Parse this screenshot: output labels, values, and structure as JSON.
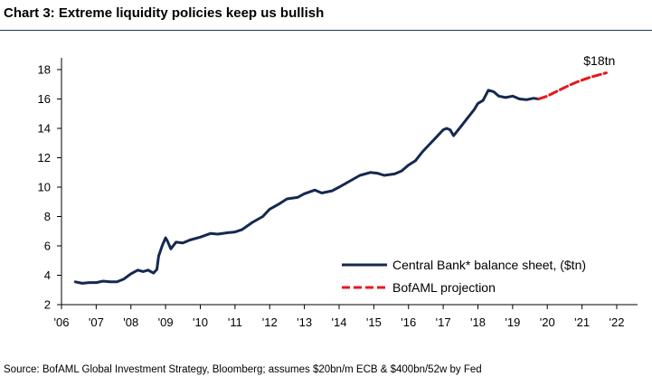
{
  "chart_data": {
    "type": "line",
    "title": "Chart 3: Extreme liquidity policies keep us bullish",
    "xlabel": "",
    "ylabel": "",
    "xlim": [
      2006,
      2022.6
    ],
    "ylim": [
      2,
      18.8
    ],
    "y_ticks": [
      2,
      4,
      6,
      8,
      10,
      12,
      14,
      16,
      18
    ],
    "x_ticks": [
      {
        "value": 2006,
        "label": "'06"
      },
      {
        "value": 2007,
        "label": "'07"
      },
      {
        "value": 2008,
        "label": "'08"
      },
      {
        "value": 2009,
        "label": "'09"
      },
      {
        "value": 2010,
        "label": "'10"
      },
      {
        "value": 2011,
        "label": "'11"
      },
      {
        "value": 2012,
        "label": "'12"
      },
      {
        "value": 2013,
        "label": "'13"
      },
      {
        "value": 2014,
        "label": "'14"
      },
      {
        "value": 2015,
        "label": "'15"
      },
      {
        "value": 2016,
        "label": "'16"
      },
      {
        "value": 2017,
        "label": "'17"
      },
      {
        "value": 2018,
        "label": "'18"
      },
      {
        "value": 2019,
        "label": "'19"
      },
      {
        "value": 2020,
        "label": "'20"
      },
      {
        "value": 2021,
        "label": "'21"
      },
      {
        "value": 2022,
        "label": "'22"
      }
    ],
    "grid": false,
    "legend_position": "bottom-right",
    "series": [
      {
        "name": "Central Bank* balance sheet, ($tn)",
        "color": "#15294f",
        "style": "solid",
        "points": [
          [
            2006.4,
            3.55
          ],
          [
            2006.6,
            3.45
          ],
          [
            2006.8,
            3.5
          ],
          [
            2007.0,
            3.5
          ],
          [
            2007.2,
            3.6
          ],
          [
            2007.4,
            3.55
          ],
          [
            2007.6,
            3.55
          ],
          [
            2007.8,
            3.75
          ],
          [
            2008.0,
            4.1
          ],
          [
            2008.2,
            4.35
          ],
          [
            2008.35,
            4.25
          ],
          [
            2008.5,
            4.35
          ],
          [
            2008.65,
            4.15
          ],
          [
            2008.75,
            4.4
          ],
          [
            2008.8,
            5.3
          ],
          [
            2008.9,
            6.0
          ],
          [
            2009.0,
            6.55
          ],
          [
            2009.05,
            6.35
          ],
          [
            2009.15,
            5.8
          ],
          [
            2009.3,
            6.25
          ],
          [
            2009.5,
            6.2
          ],
          [
            2009.7,
            6.4
          ],
          [
            2010.0,
            6.6
          ],
          [
            2010.3,
            6.85
          ],
          [
            2010.5,
            6.8
          ],
          [
            2010.8,
            6.9
          ],
          [
            2011.0,
            6.95
          ],
          [
            2011.2,
            7.1
          ],
          [
            2011.5,
            7.6
          ],
          [
            2011.8,
            8.0
          ],
          [
            2012.0,
            8.5
          ],
          [
            2012.3,
            8.9
          ],
          [
            2012.5,
            9.2
          ],
          [
            2012.8,
            9.3
          ],
          [
            2013.0,
            9.55
          ],
          [
            2013.3,
            9.8
          ],
          [
            2013.5,
            9.6
          ],
          [
            2013.8,
            9.75
          ],
          [
            2014.0,
            10.0
          ],
          [
            2014.3,
            10.4
          ],
          [
            2014.6,
            10.8
          ],
          [
            2014.9,
            11.0
          ],
          [
            2015.1,
            10.95
          ],
          [
            2015.3,
            10.8
          ],
          [
            2015.6,
            10.9
          ],
          [
            2015.8,
            11.1
          ],
          [
            2016.0,
            11.5
          ],
          [
            2016.2,
            11.8
          ],
          [
            2016.4,
            12.4
          ],
          [
            2016.6,
            12.9
          ],
          [
            2016.8,
            13.4
          ],
          [
            2017.0,
            13.9
          ],
          [
            2017.1,
            14.0
          ],
          [
            2017.2,
            13.9
          ],
          [
            2017.3,
            13.5
          ],
          [
            2017.5,
            14.1
          ],
          [
            2017.7,
            14.7
          ],
          [
            2017.9,
            15.3
          ],
          [
            2018.0,
            15.7
          ],
          [
            2018.15,
            15.9
          ],
          [
            2018.3,
            16.6
          ],
          [
            2018.45,
            16.5
          ],
          [
            2018.6,
            16.2
          ],
          [
            2018.8,
            16.1
          ],
          [
            2019.0,
            16.2
          ],
          [
            2019.2,
            16.0
          ],
          [
            2019.4,
            15.95
          ],
          [
            2019.6,
            16.05
          ],
          [
            2019.75,
            16.0
          ]
        ]
      },
      {
        "name": "BofAML projection",
        "color": "#e8171c",
        "style": "dashed",
        "points": [
          [
            2019.75,
            16.0
          ],
          [
            2020.0,
            16.2
          ],
          [
            2020.3,
            16.55
          ],
          [
            2020.6,
            16.9
          ],
          [
            2020.9,
            17.2
          ],
          [
            2021.2,
            17.45
          ],
          [
            2021.5,
            17.65
          ],
          [
            2021.7,
            17.78
          ]
        ]
      }
    ],
    "annotations": [
      {
        "text": "$18tn",
        "x": 2021.5,
        "y": 18.3
      }
    ]
  },
  "source": "Source: BofAML Global Investment Strategy, Bloomberg; assumes $20bn/m ECB & $400bn/52w by Fed"
}
